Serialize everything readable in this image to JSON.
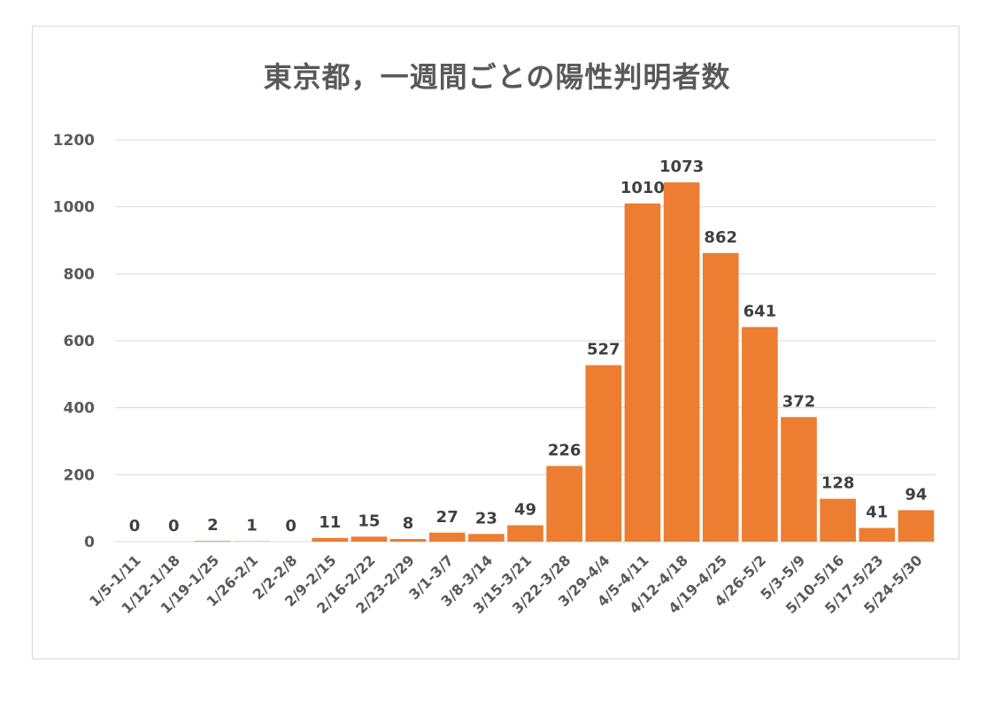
{
  "chart_data": {
    "type": "bar",
    "title": "東京都，一週間ごとの陽性判明者数",
    "xlabel": "",
    "ylabel": "",
    "ylim": [
      0,
      1200
    ],
    "yticks": [
      0,
      200,
      400,
      600,
      800,
      1000,
      1200
    ],
    "grid": true,
    "legend": "none",
    "bar_color": "#ED7D31",
    "categories": [
      "1/5-1/11",
      "1/12-1/18",
      "1/19-1/25",
      "1/26-2/1",
      "2/2-2/8",
      "2/9-2/15",
      "2/16-2/22",
      "2/23-2/29",
      "3/1-3/7",
      "3/8-3/14",
      "3/15-3/21",
      "3/22-3/28",
      "3/29-4/4",
      "4/5-4/11",
      "4/12-4/18",
      "4/19-4/25",
      "4/26-5/2",
      "5/3-5/9",
      "5/10-5/16",
      "5/17-5/23",
      "5/24-5/30"
    ],
    "values": [
      0,
      0,
      2,
      1,
      0,
      11,
      15,
      8,
      27,
      23,
      49,
      226,
      527,
      1010,
      1073,
      862,
      641,
      372,
      128,
      41,
      94
    ]
  }
}
